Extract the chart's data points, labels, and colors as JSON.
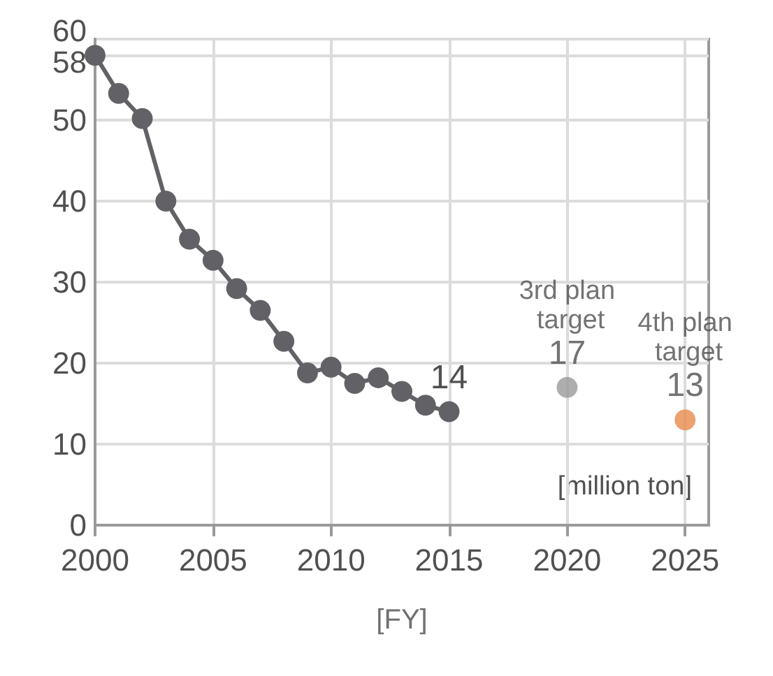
{
  "chart_data": {
    "type": "line",
    "xlabel": "[FY]",
    "annotations": [
      "[million ton]"
    ],
    "xlim": [
      2000,
      2026
    ],
    "xticks": [
      2000,
      2005,
      2010,
      2015,
      2020,
      2025
    ],
    "ylim": [
      0,
      60
    ],
    "yticks": [
      0,
      10,
      20,
      30,
      40,
      50,
      58,
      60
    ],
    "grid": true,
    "marker": "circle",
    "series": [
      {
        "color": "#626266",
        "x": [
          2000,
          2001,
          2002,
          2003,
          2004,
          2005,
          2006,
          2007,
          2008,
          2009,
          2010,
          2011,
          2012,
          2013,
          2014,
          2015
        ],
        "values": [
          58,
          53.3,
          50.2,
          40,
          35.3,
          32.7,
          29.2,
          26.5,
          22.7,
          18.8,
          19.5,
          17.5,
          18.2,
          16.5,
          14.8,
          14
        ],
        "value_labels": [
          null,
          null,
          null,
          null,
          null,
          null,
          null,
          null,
          null,
          null,
          null,
          null,
          null,
          null,
          null,
          "14"
        ]
      },
      {
        "type": "scatter",
        "name": "3rd plan target",
        "color": "#9a9a9a",
        "x": [
          2020
        ],
        "values": [
          17
        ],
        "value_labels": [
          "17"
        ]
      },
      {
        "type": "scatter",
        "name": "4th plan target",
        "color": "#e8894a",
        "x": [
          2025
        ],
        "values": [
          13
        ],
        "value_labels": [
          "13"
        ]
      }
    ]
  }
}
